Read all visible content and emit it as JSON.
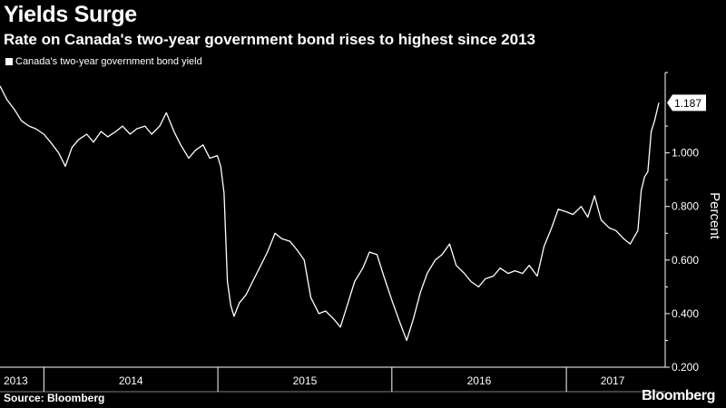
{
  "header": {
    "title": "Yields Surge",
    "subtitle": "Rate on Canada's two-year government bond rises to highest since 2013"
  },
  "footer": {
    "source": "Source: Bloomberg",
    "brand": "Bloomberg"
  },
  "colors": {
    "background": "#000000",
    "line": "#ffffff",
    "axis": "#ffffff"
  },
  "chart_data": {
    "type": "line",
    "title": "Yields Surge",
    "subtitle": "Rate on Canada's two-year government bond rises to highest since 2013",
    "ylabel": "Percent",
    "xlabel": "",
    "ylim": [
      0.2,
      1.3
    ],
    "yticks": [
      0.2,
      0.4,
      0.6,
      0.8,
      1.0
    ],
    "ytick_labels": [
      "0.200",
      "0.400",
      "0.600",
      "0.800",
      "1.000"
    ],
    "x_range": [
      "2013-10-01",
      "2017-07-14"
    ],
    "years": [
      {
        "label": "2013",
        "start": "2013-10-01",
        "end": "2014-01-01"
      },
      {
        "label": "2014",
        "start": "2014-01-01",
        "end": "2015-01-01"
      },
      {
        "label": "2015",
        "start": "2015-01-01",
        "end": "2016-01-01"
      },
      {
        "label": "2016",
        "start": "2016-01-01",
        "end": "2017-01-01"
      },
      {
        "label": "2017",
        "start": "2017-01-01",
        "end": "2017-07-14"
      }
    ],
    "legend": {
      "position": "top-left",
      "entries": [
        "Canada's two-year government bond yield"
      ]
    },
    "last_value_label": "1.187",
    "grid": false,
    "series": [
      {
        "name": "Canada's two-year government bond yield",
        "points": [
          [
            "2013-10-01",
            1.25
          ],
          [
            "2013-10-15",
            1.2
          ],
          [
            "2013-11-01",
            1.16
          ],
          [
            "2013-11-15",
            1.12
          ],
          [
            "2013-12-01",
            1.1
          ],
          [
            "2013-12-15",
            1.09
          ],
          [
            "2014-01-01",
            1.07
          ],
          [
            "2014-01-15",
            1.04
          ],
          [
            "2014-02-01",
            1.0
          ],
          [
            "2014-02-15",
            0.95
          ],
          [
            "2014-03-01",
            1.02
          ],
          [
            "2014-03-15",
            1.05
          ],
          [
            "2014-04-01",
            1.07
          ],
          [
            "2014-04-15",
            1.04
          ],
          [
            "2014-05-01",
            1.08
          ],
          [
            "2014-05-15",
            1.06
          ],
          [
            "2014-06-01",
            1.08
          ],
          [
            "2014-06-15",
            1.1
          ],
          [
            "2014-07-01",
            1.07
          ],
          [
            "2014-07-15",
            1.09
          ],
          [
            "2014-08-01",
            1.1
          ],
          [
            "2014-08-15",
            1.07
          ],
          [
            "2014-09-01",
            1.1
          ],
          [
            "2014-09-15",
            1.15
          ],
          [
            "2014-10-01",
            1.08
          ],
          [
            "2014-10-15",
            1.03
          ],
          [
            "2014-11-01",
            0.98
          ],
          [
            "2014-11-15",
            1.01
          ],
          [
            "2014-12-01",
            1.03
          ],
          [
            "2014-12-15",
            0.98
          ],
          [
            "2014-12-31",
            0.99
          ],
          [
            "2015-01-07",
            0.95
          ],
          [
            "2015-01-14",
            0.85
          ],
          [
            "2015-01-21",
            0.52
          ],
          [
            "2015-01-28",
            0.43
          ],
          [
            "2015-02-04",
            0.39
          ],
          [
            "2015-02-15",
            0.44
          ],
          [
            "2015-03-01",
            0.47
          ],
          [
            "2015-03-15",
            0.52
          ],
          [
            "2015-04-01",
            0.58
          ],
          [
            "2015-04-15",
            0.63
          ],
          [
            "2015-05-01",
            0.7
          ],
          [
            "2015-05-15",
            0.68
          ],
          [
            "2015-06-01",
            0.67
          ],
          [
            "2015-06-15",
            0.64
          ],
          [
            "2015-07-01",
            0.6
          ],
          [
            "2015-07-15",
            0.46
          ],
          [
            "2015-08-01",
            0.4
          ],
          [
            "2015-08-15",
            0.41
          ],
          [
            "2015-09-01",
            0.38
          ],
          [
            "2015-09-15",
            0.35
          ],
          [
            "2015-10-01",
            0.44
          ],
          [
            "2015-10-15",
            0.52
          ],
          [
            "2015-11-01",
            0.57
          ],
          [
            "2015-11-15",
            0.63
          ],
          [
            "2015-12-01",
            0.62
          ],
          [
            "2015-12-15",
            0.54
          ],
          [
            "2016-01-01",
            0.45
          ],
          [
            "2016-01-15",
            0.38
          ],
          [
            "2016-02-01",
            0.3
          ],
          [
            "2016-02-15",
            0.38
          ],
          [
            "2016-03-01",
            0.48
          ],
          [
            "2016-03-15",
            0.55
          ],
          [
            "2016-04-01",
            0.6
          ],
          [
            "2016-04-15",
            0.62
          ],
          [
            "2016-05-01",
            0.66
          ],
          [
            "2016-05-15",
            0.58
          ],
          [
            "2016-06-01",
            0.55
          ],
          [
            "2016-06-15",
            0.52
          ],
          [
            "2016-07-01",
            0.5
          ],
          [
            "2016-07-15",
            0.53
          ],
          [
            "2016-08-01",
            0.54
          ],
          [
            "2016-08-15",
            0.57
          ],
          [
            "2016-09-01",
            0.55
          ],
          [
            "2016-09-15",
            0.56
          ],
          [
            "2016-10-01",
            0.55
          ],
          [
            "2016-10-15",
            0.58
          ],
          [
            "2016-11-01",
            0.54
          ],
          [
            "2016-11-15",
            0.65
          ],
          [
            "2016-12-01",
            0.72
          ],
          [
            "2016-12-15",
            0.79
          ],
          [
            "2017-01-01",
            0.78
          ],
          [
            "2017-01-15",
            0.77
          ],
          [
            "2017-02-01",
            0.8
          ],
          [
            "2017-02-15",
            0.76
          ],
          [
            "2017-03-01",
            0.84
          ],
          [
            "2017-03-15",
            0.75
          ],
          [
            "2017-04-01",
            0.72
          ],
          [
            "2017-04-15",
            0.71
          ],
          [
            "2017-05-01",
            0.68
          ],
          [
            "2017-05-15",
            0.66
          ],
          [
            "2017-05-31",
            0.71
          ],
          [
            "2017-06-07",
            0.86
          ],
          [
            "2017-06-14",
            0.91
          ],
          [
            "2017-06-21",
            0.93
          ],
          [
            "2017-06-28",
            1.08
          ],
          [
            "2017-07-05",
            1.12
          ],
          [
            "2017-07-14",
            1.187
          ]
        ]
      }
    ]
  }
}
